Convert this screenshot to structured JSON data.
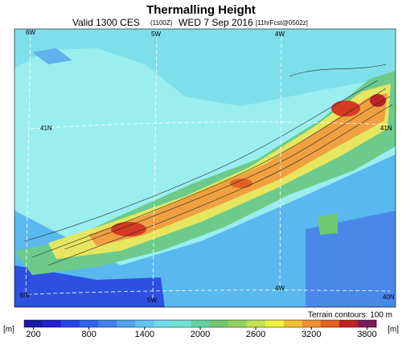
{
  "header": {
    "title": "Thermalling Height",
    "valid": "Valid 1300 CES",
    "utc": "(1100Z)",
    "date": "WED 7 Sep 2016",
    "forecast": "[11hrFcst@0502z]"
  },
  "map": {
    "labels": {
      "top": [
        "6W",
        "5W",
        "4W"
      ],
      "left": "41N",
      "right": "41N",
      "bottom": [
        "6W",
        "5W",
        "4W",
        "40N"
      ]
    },
    "terrain_note": "Terrain contours: 100 m"
  },
  "colorbar": {
    "unit_left": "[m]",
    "unit_right": "[m]",
    "range": [
      100,
      3900
    ],
    "ticks": [
      200,
      800,
      1400,
      2000,
      2600,
      3200,
      3800
    ],
    "colors": [
      "#1a1aa8",
      "#2222d0",
      "#2a44e8",
      "#3262f0",
      "#4282f0",
      "#52a2f2",
      "#62c2f2",
      "#72dbea",
      "#72e2d2",
      "#62d2a2",
      "#72c872",
      "#92d262",
      "#c2e252",
      "#f0f040",
      "#f0c232",
      "#f09232",
      "#e06222",
      "#c02222",
      "#7a1a5a"
    ]
  }
}
